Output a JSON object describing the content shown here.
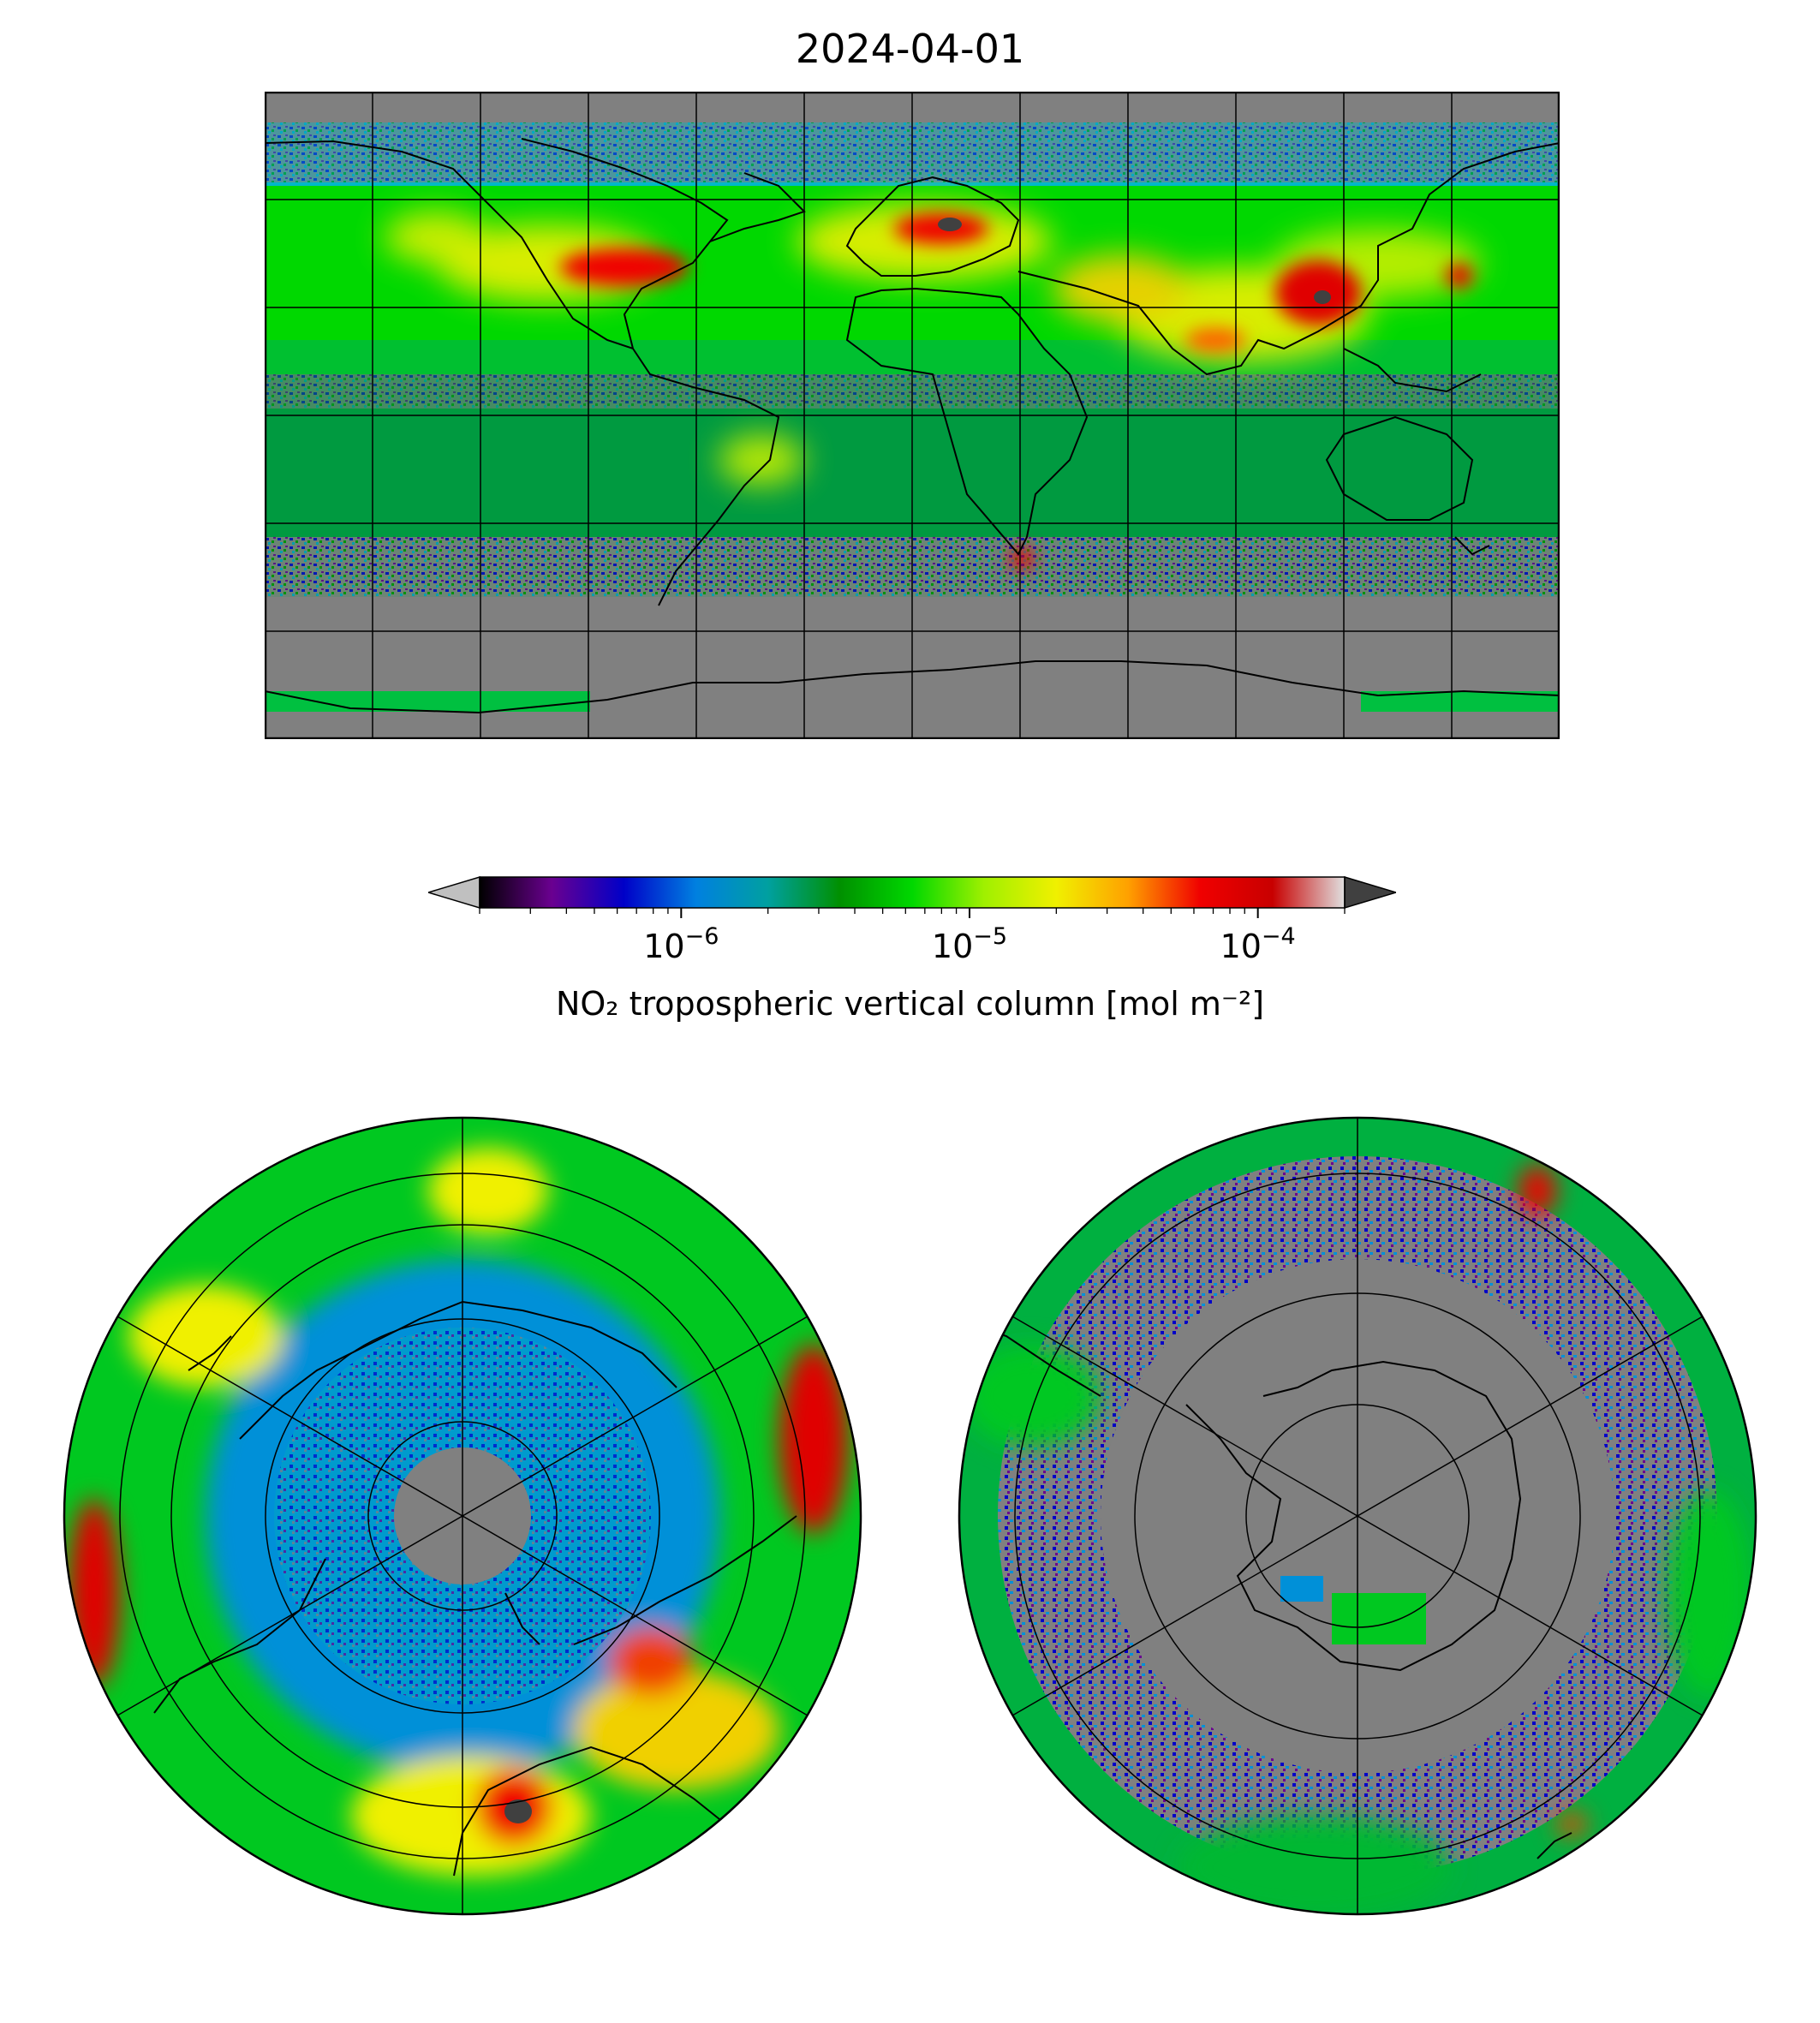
{
  "title": "2024-04-01",
  "colorbar": {
    "label": "NO₂ tropospheric vertical column [mol m⁻²]",
    "scale": "log",
    "range": [
      2e-07,
      0.0002
    ],
    "ticks": [
      {
        "value": 1e-06,
        "base": "10",
        "exp": "−6"
      },
      {
        "value": 1e-05,
        "base": "10",
        "exp": "−5"
      },
      {
        "value": 0.0001,
        "base": "10",
        "exp": "−4"
      }
    ],
    "extend_under_color": "#c0c0c0",
    "extend_over_color": "#404040",
    "stops": [
      "#000000",
      "#6a0090",
      "#0000c8",
      "#0080e0",
      "#00a0a0",
      "#009000",
      "#00d800",
      "#a0f000",
      "#f0f000",
      "#ffa000",
      "#f00000",
      "#c80000",
      "#e0e0e0"
    ]
  },
  "panels": [
    {
      "name": "global",
      "projection": "plate-carree",
      "no_data_color": "#808080",
      "grid": true
    },
    {
      "name": "northern-hemisphere",
      "projection": "north-polar-stereographic",
      "no_data_color": "#808080",
      "grid": true
    },
    {
      "name": "southern-hemisphere",
      "projection": "south-polar-stereographic",
      "no_data_color": "#808080",
      "grid": true
    }
  ],
  "chart_data": {
    "type": "heatmap",
    "title": "2024-04-01",
    "colorbar_label": "NO₂ tropospheric vertical column [mol m⁻²]",
    "scale": "log",
    "range": [
      2e-07,
      0.0002
    ],
    "ticks": [
      1e-06,
      1e-05,
      0.0001
    ],
    "hotspots": [
      {
        "region": "Eastern China",
        "level": "high"
      },
      {
        "region": "Western Europe",
        "level": "high"
      },
      {
        "region": "Eastern United States",
        "level": "high"
      },
      {
        "region": "Northern India",
        "level": "elevated"
      },
      {
        "region": "South Africa Highveld",
        "level": "high"
      },
      {
        "region": "Japan",
        "level": "elevated"
      }
    ]
  }
}
